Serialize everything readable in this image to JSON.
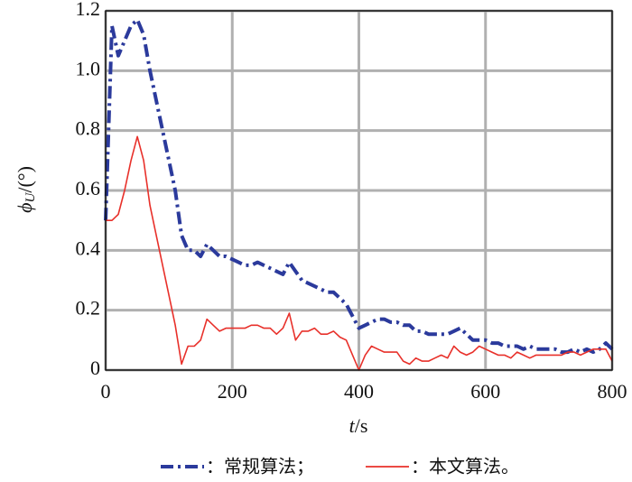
{
  "chart_data": {
    "type": "line",
    "x_label": [
      "t",
      "/s"
    ],
    "y_label": [
      "ϕ",
      "U",
      "/(°)"
    ],
    "x": [
      0,
      10,
      20,
      30,
      40,
      50,
      60,
      70,
      80,
      90,
      100,
      110,
      120,
      130,
      140,
      150,
      160,
      170,
      180,
      190,
      200,
      210,
      220,
      230,
      240,
      250,
      260,
      270,
      280,
      290,
      300,
      310,
      320,
      330,
      340,
      350,
      360,
      370,
      380,
      390,
      400,
      410,
      420,
      430,
      440,
      450,
      460,
      470,
      480,
      490,
      500,
      510,
      520,
      530,
      540,
      550,
      560,
      570,
      580,
      590,
      600,
      610,
      620,
      630,
      640,
      650,
      660,
      670,
      680,
      690,
      700,
      710,
      720,
      730,
      740,
      750,
      760,
      770,
      780,
      790,
      800
    ],
    "series": [
      {
        "name": "：常规算法；",
        "color": "#2b3a9c",
        "dash": "dashdot",
        "values": [
          0.5,
          1.15,
          1.05,
          1.1,
          1.15,
          1.17,
          1.12,
          1.0,
          0.9,
          0.8,
          0.7,
          0.6,
          0.45,
          0.4,
          0.4,
          0.38,
          0.42,
          0.4,
          0.38,
          0.38,
          0.37,
          0.36,
          0.35,
          0.35,
          0.36,
          0.35,
          0.34,
          0.33,
          0.32,
          0.36,
          0.33,
          0.3,
          0.29,
          0.28,
          0.27,
          0.26,
          0.26,
          0.24,
          0.22,
          0.18,
          0.14,
          0.15,
          0.16,
          0.17,
          0.17,
          0.16,
          0.16,
          0.15,
          0.15,
          0.13,
          0.13,
          0.12,
          0.12,
          0.12,
          0.12,
          0.13,
          0.14,
          0.12,
          0.1,
          0.1,
          0.1,
          0.09,
          0.09,
          0.08,
          0.08,
          0.08,
          0.07,
          0.08,
          0.07,
          0.07,
          0.07,
          0.07,
          0.06,
          0.06,
          0.07,
          0.06,
          0.07,
          0.06,
          0.07,
          0.09,
          0.07
        ]
      },
      {
        "name": "：本文算法。",
        "color": "#e8302a",
        "dash": "solid",
        "values": [
          0.5,
          0.5,
          0.52,
          0.6,
          0.7,
          0.78,
          0.7,
          0.55,
          0.45,
          0.35,
          0.25,
          0.15,
          0.02,
          0.08,
          0.08,
          0.1,
          0.17,
          0.15,
          0.13,
          0.14,
          0.14,
          0.14,
          0.14,
          0.15,
          0.15,
          0.14,
          0.14,
          0.12,
          0.14,
          0.19,
          0.1,
          0.13,
          0.13,
          0.14,
          0.12,
          0.12,
          0.13,
          0.11,
          0.1,
          0.05,
          0.0,
          0.05,
          0.08,
          0.07,
          0.06,
          0.06,
          0.06,
          0.03,
          0.02,
          0.04,
          0.03,
          0.03,
          0.04,
          0.05,
          0.04,
          0.08,
          0.06,
          0.05,
          0.06,
          0.08,
          0.07,
          0.06,
          0.05,
          0.05,
          0.04,
          0.06,
          0.05,
          0.04,
          0.05,
          0.05,
          0.05,
          0.05,
          0.05,
          0.06,
          0.06,
          0.05,
          0.06,
          0.07,
          0.07,
          0.07,
          0.03
        ]
      }
    ],
    "xlim": [
      0,
      800
    ],
    "xticks": [
      0,
      200,
      400,
      600,
      800
    ],
    "ylim": [
      0,
      1.2
    ],
    "yticks": [
      0,
      0.2,
      0.4,
      0.6,
      0.8,
      {
        "value": 1,
        "label": "1.0"
      },
      1.2
    ],
    "grid": true,
    "legend": "bottom"
  }
}
